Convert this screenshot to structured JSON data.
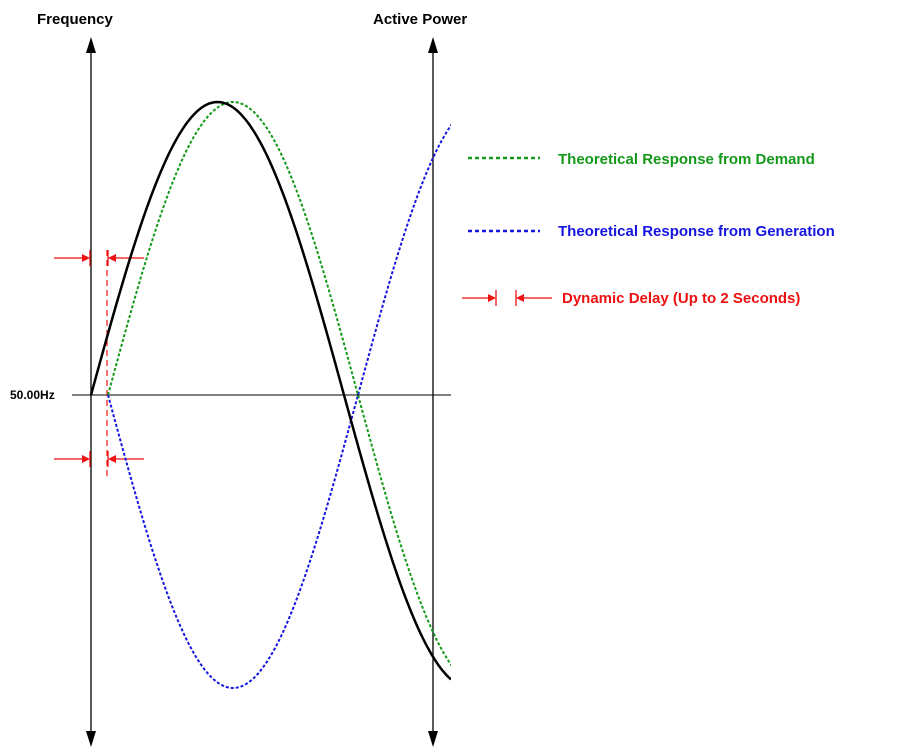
{
  "axes": {
    "left_title": "Frequency",
    "right_title": "Active Power",
    "baseline_label": "50.00Hz"
  },
  "legend": {
    "items": [
      {
        "label": "Theoretical Response from Demand",
        "color": "#14991a",
        "style": "dotted"
      },
      {
        "label": "Theoretical Response from Generation",
        "color": "#1515e0",
        "style": "dotted"
      },
      {
        "label": "Dynamic Delay (Up to 2 Seconds)",
        "color": "#ee1111",
        "style": "delay-marker"
      }
    ]
  },
  "colors": {
    "frequency": "#000000",
    "demand": "#14991a",
    "generation": "#1515e0",
    "delay": "#ee1111"
  }
}
